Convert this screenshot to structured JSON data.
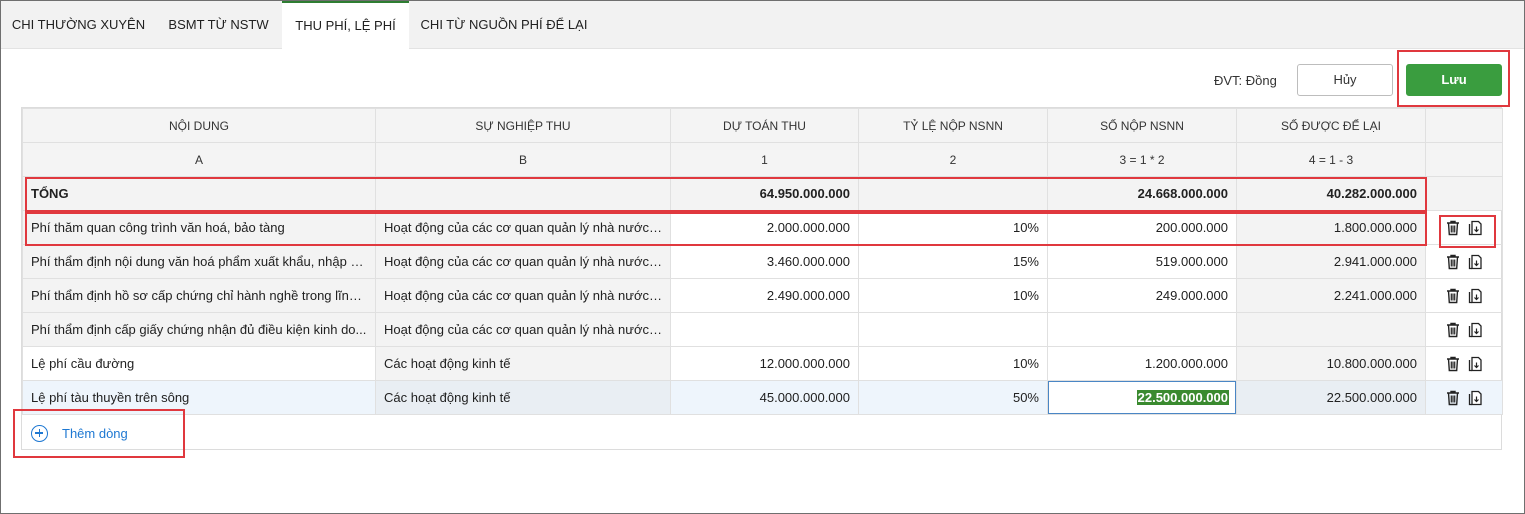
{
  "tabs": [
    {
      "label": "CHI THƯỜNG XUYÊN"
    },
    {
      "label": "BSMT TỪ NSTW"
    },
    {
      "label": "THU PHÍ, LỆ PHÍ"
    },
    {
      "label": "CHI TỪ NGUỒN PHÍ ĐỂ LẠI"
    }
  ],
  "active_tab": "THU PHÍ, LỆ PHÍ",
  "toolbar": {
    "unit": "ĐVT: Đồng",
    "cancel_label": "Hủy",
    "save_label": "Lưu"
  },
  "table": {
    "columns": [
      "NỘI DUNG",
      "SỰ NGHIỆP THU",
      "DỰ TOÁN THU",
      "TỶ LỆ NỘP NSNN",
      "SỐ NỘP NSNN",
      "SỐ ĐƯỢC ĐỂ LẠI"
    ],
    "column_codes": [
      "A",
      "B",
      "1",
      "2",
      "3 = 1 * 2",
      "4 = 1 - 3"
    ],
    "total": {
      "label": "TỔNG",
      "du_toan_thu": "64.950.000.000",
      "so_nop": "24.668.000.000",
      "so_de_lai": "40.282.000.000"
    },
    "rows": [
      {
        "noi_dung": "Phí thăm quan công trình văn hoá, bảo tàng",
        "su_nghiep": "Hoạt động của các cơ quan quản lý nhà nước, ...",
        "du_toan": "2.000.000.000",
        "ty_le": "10%",
        "so_nop": "200.000.000",
        "de_lai": "1.800.000.000"
      },
      {
        "noi_dung": "Phí thẩm định nội dung văn hoá phẩm xuất khẩu, nhập k...",
        "su_nghiep": "Hoạt động của các cơ quan quản lý nhà nước, ...",
        "du_toan": "3.460.000.000",
        "ty_le": "15%",
        "so_nop": "519.000.000",
        "de_lai": "2.941.000.000"
      },
      {
        "noi_dung": "Phí thẩm định hồ sơ cấp chứng chỉ hành nghề trong lĩnh ...",
        "su_nghiep": "Hoạt động của các cơ quan quản lý nhà nước, ...",
        "du_toan": "2.490.000.000",
        "ty_le": "10%",
        "so_nop": "249.000.000",
        "de_lai": "2.241.000.000"
      },
      {
        "noi_dung": "Phí thẩm định cấp giấy chứng nhận đủ điều kiện kinh do...",
        "su_nghiep": "Hoạt động của các cơ quan quản lý nhà nước, ...",
        "du_toan": "",
        "ty_le": "",
        "so_nop": "",
        "de_lai": ""
      },
      {
        "noi_dung": "Lệ phí cầu đường",
        "su_nghiep": "Các hoạt động kinh tế",
        "du_toan": "12.000.000.000",
        "ty_le": "10%",
        "so_nop": "1.200.000.000",
        "de_lai": "10.800.000.000"
      },
      {
        "noi_dung": "Lệ phí tàu thuyền trên sông",
        "su_nghiep": "Các hoạt động kinh tế",
        "du_toan": "45.000.000.000",
        "ty_le": "50%",
        "so_nop": "22.500.000.000",
        "de_lai": "22.500.000.000"
      }
    ]
  },
  "add_row_label": "Thêm dòng",
  "icons": [
    "trash-icon",
    "copy-icon",
    "plus-circle-icon"
  ],
  "colors": {
    "accent": "#3a9d3f",
    "link": "#1e78d2",
    "annotation": "#e0383e",
    "selected_row": "#eef5fc"
  }
}
